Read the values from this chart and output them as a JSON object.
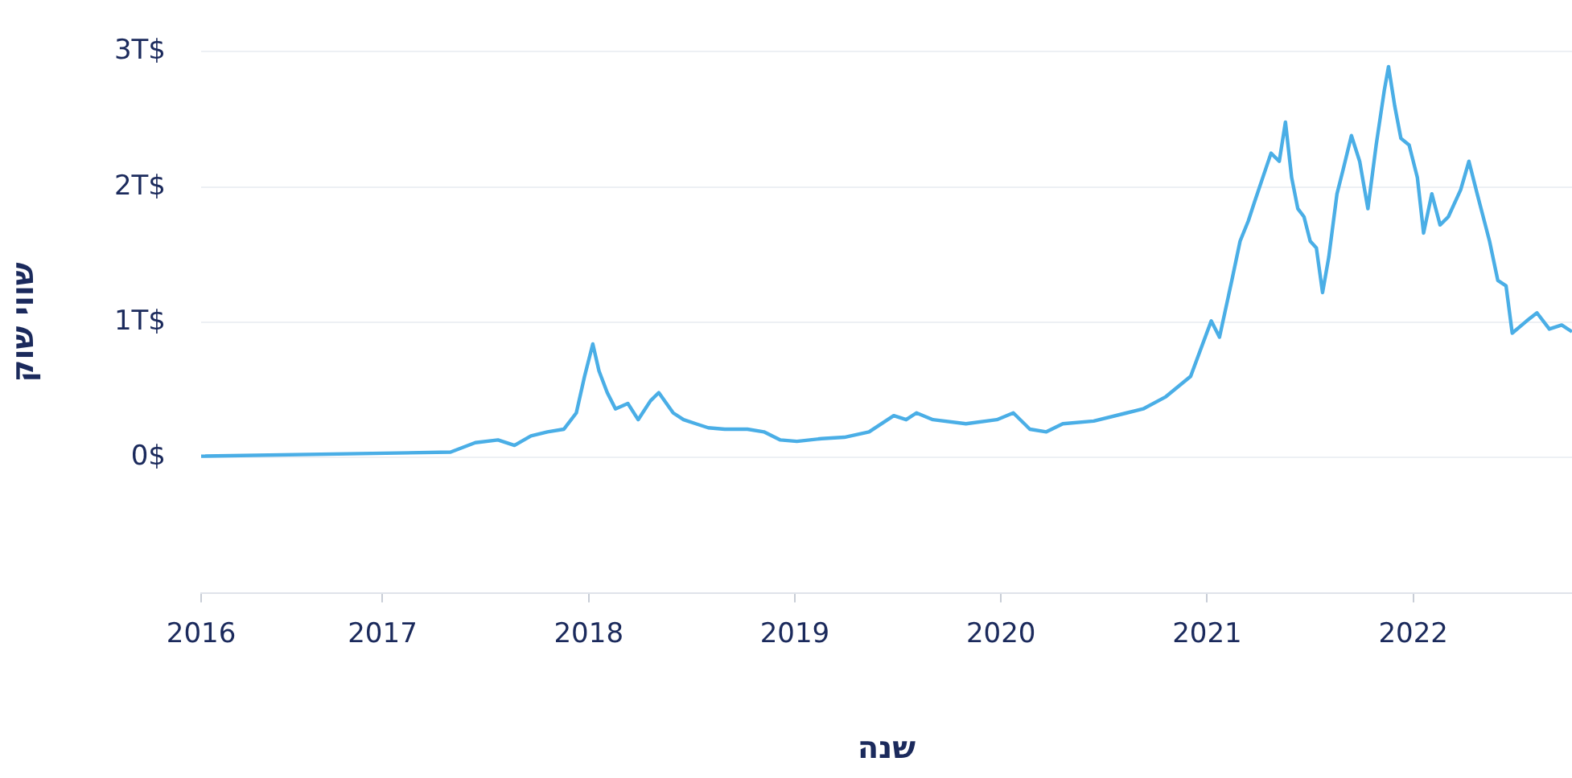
{
  "chart_data": {
    "type": "line",
    "xlabel": "שנה",
    "ylabel": "שווי שוק",
    "x": [
      2016.12,
      2017.33,
      2017.45,
      2017.56,
      2017.64,
      2017.72,
      2017.8,
      2017.88,
      2017.94,
      2017.98,
      2018.02,
      2018.05,
      2018.09,
      2018.13,
      2018.19,
      2018.24,
      2018.3,
      2018.34,
      2018.41,
      2018.46,
      2018.52,
      2018.58,
      2018.66,
      2018.77,
      2018.85,
      2018.93,
      2019.01,
      2019.13,
      2019.24,
      2019.36,
      2019.48,
      2019.54,
      2019.59,
      2019.67,
      2019.83,
      2019.98,
      2020.06,
      2020.14,
      2020.22,
      2020.3,
      2020.45,
      2020.61,
      2020.69,
      2020.8,
      2020.92,
      2021.02,
      2021.06,
      2021.12,
      2021.16,
      2021.2,
      2021.23,
      2021.27,
      2021.31,
      2021.35,
      2021.38,
      2021.41,
      2021.44,
      2021.47,
      2021.5,
      2021.53,
      2021.56,
      2021.59,
      2021.63,
      2021.66,
      2021.7,
      2021.74,
      2021.78,
      2021.82,
      2021.86,
      2021.88,
      2021.91,
      2021.94,
      2021.98,
      2022.02,
      2022.05,
      2022.09,
      2022.13,
      2022.17,
      2022.23,
      2022.27,
      2022.31,
      2022.37,
      2022.41,
      2022.45,
      2022.48,
      2022.55,
      2022.6,
      2022.66,
      2022.72,
      2022.77
    ],
    "series": [
      {
        "color": "#4aaee6",
        "values": [
          0.01,
          0.04,
          0.11,
          0.13,
          0.09,
          0.16,
          0.19,
          0.21,
          0.33,
          0.6,
          0.84,
          0.64,
          0.48,
          0.36,
          0.4,
          0.28,
          0.42,
          0.48,
          0.33,
          0.28,
          0.25,
          0.22,
          0.21,
          0.21,
          0.19,
          0.13,
          0.12,
          0.14,
          0.15,
          0.19,
          0.31,
          0.28,
          0.33,
          0.28,
          0.25,
          0.28,
          0.33,
          0.21,
          0.19,
          0.25,
          0.27,
          0.33,
          0.36,
          0.45,
          0.6,
          1.01,
          0.89,
          1.31,
          1.6,
          1.75,
          1.89,
          2.07,
          2.25,
          2.19,
          2.48,
          2.07,
          1.84,
          1.78,
          1.6,
          1.55,
          1.22,
          1.48,
          1.95,
          2.13,
          2.38,
          2.19,
          1.84,
          2.31,
          2.72,
          2.89,
          2.6,
          2.36,
          2.31,
          2.07,
          1.66,
          1.95,
          1.72,
          1.78,
          1.98,
          2.19,
          1.95,
          1.6,
          1.31,
          1.27,
          0.92,
          1.01,
          1.07,
          0.95,
          0.98,
          0.93
        ]
      }
    ],
    "xlim": [
      2016.12,
      2022.77
    ],
    "xticks": [
      {
        "value": 2016.12,
        "label": "2016"
      },
      2017,
      2018,
      2019,
      2020,
      2021,
      2022
    ],
    "ylim": [
      -1,
      3
    ],
    "yticks": [
      {
        "value": -1,
        "label": null
      },
      {
        "value": 0,
        "label": "0$"
      },
      {
        "value": 1,
        "label": "1T$"
      },
      {
        "value": 2,
        "label": "2T$"
      },
      {
        "value": 3,
        "label": "3T$"
      }
    ],
    "grid": "y",
    "legend": false,
    "marker": "none",
    "line_style": "solid"
  }
}
